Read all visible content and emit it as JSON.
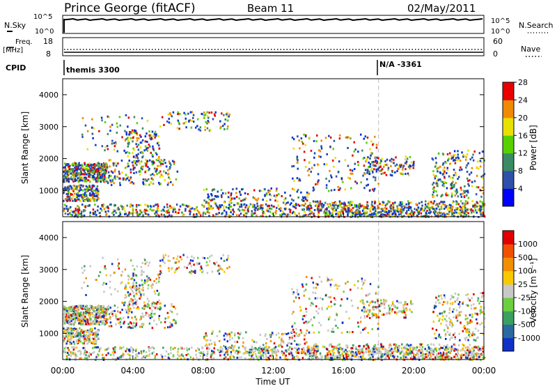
{
  "header": {
    "station": "Prince George (fitACF)",
    "beam": "Beam 11",
    "date": "02/May/2011"
  },
  "top_panels": {
    "nsky_label": "N.Sky",
    "nsky_ticks": [
      "10^5",
      "10^0"
    ],
    "nsearch_label": "N.Search",
    "nsearch_ticks": [
      "10^5",
      "10^0"
    ],
    "freq_label_1": "Freq.",
    "freq_label_2": "[MHz]",
    "freq_ticks": [
      "18",
      "8"
    ],
    "nave_label": "Nave",
    "nave_ticks": [
      "60",
      "0"
    ],
    "cpid_label": "CPID",
    "cpid_entries": [
      "themis 3300",
      "N/A -3361"
    ]
  },
  "chart_data": [
    {
      "type": "heatmap",
      "title": "",
      "ylabel": "Slant Range [km]",
      "xlabel": "",
      "xlim": [
        "00:00",
        "00:00"
      ],
      "ylim": [
        180,
        4500
      ],
      "yticks": [
        "1000",
        "2000",
        "3000",
        "4000"
      ],
      "colorbar": {
        "label": "Power [dB]",
        "ticks": [
          "4",
          "8",
          "12",
          "16",
          "20",
          "24",
          "28"
        ],
        "colors": [
          "#0000ff",
          "#2f4fa8",
          "#3a8a64",
          "#58d000",
          "#e8e000",
          "#f08a00",
          "#e80000"
        ]
      }
    },
    {
      "type": "heatmap",
      "title": "",
      "ylabel": "Slant Range [km]",
      "xlabel": "Time UT",
      "xlim": [
        "00:00",
        "00:00"
      ],
      "ylim": [
        180,
        4500
      ],
      "yticks": [
        "1000",
        "2000",
        "3000",
        "4000"
      ],
      "xticks": [
        "00:00",
        "04:00",
        "08:00",
        "12:00",
        "16:00",
        "20:00",
        "00:00"
      ],
      "colorbar": {
        "label": "Velocity [m s⁻¹]",
        "ticks": [
          "1000",
          "500",
          "100",
          "25",
          "-25",
          "-100",
          "-500",
          "-1000"
        ],
        "colors": [
          "#1030c8",
          "#2a6aa0",
          "#3aa060",
          "#6ad040",
          "#c8c8c8",
          "#f8c800",
          "#f09000",
          "#f05000",
          "#e00000"
        ]
      }
    }
  ]
}
